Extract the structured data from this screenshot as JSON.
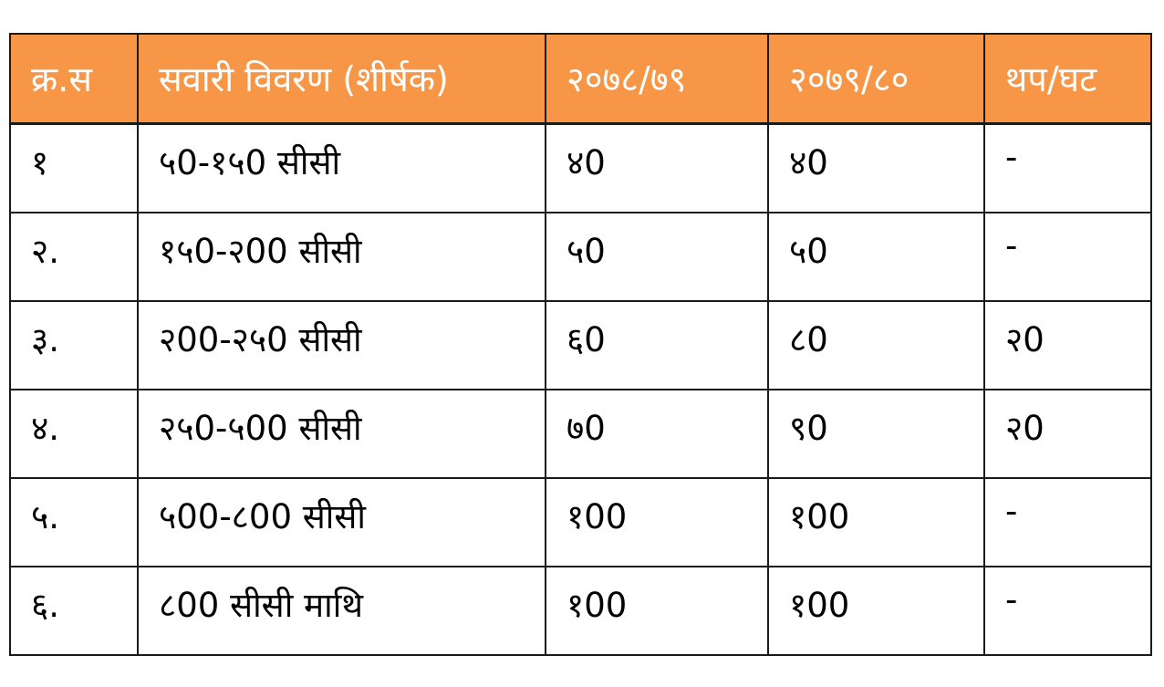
{
  "table": {
    "headers": [
      "क्र.स",
      "सवारी विवरण (शीर्षक)",
      "२०७८/७९",
      "२०७९/८०",
      "थप/घट"
    ],
    "rows": [
      [
        "१",
        "५0-१५0 सीसी",
        "४0",
        "४0",
        "-"
      ],
      [
        "२.",
        "१५0-२00 सीसी",
        "५0",
        "५0",
        "-"
      ],
      [
        "३.",
        "२00-२५0 सीसी",
        "६0",
        "८0",
        "२0"
      ],
      [
        "४.",
        "२५0-५00 सीसी",
        "७0",
        "९0",
        "२0"
      ],
      [
        "५.",
        "५00-८00 सीसी",
        "१00",
        "१00",
        "-"
      ],
      [
        "६.",
        "८00 सीसी माथि",
        "१00",
        "१00",
        "-"
      ]
    ]
  },
  "colors": {
    "header_bg": "#f79646",
    "header_text": "#ffffff",
    "border": "#1a1a1a"
  }
}
